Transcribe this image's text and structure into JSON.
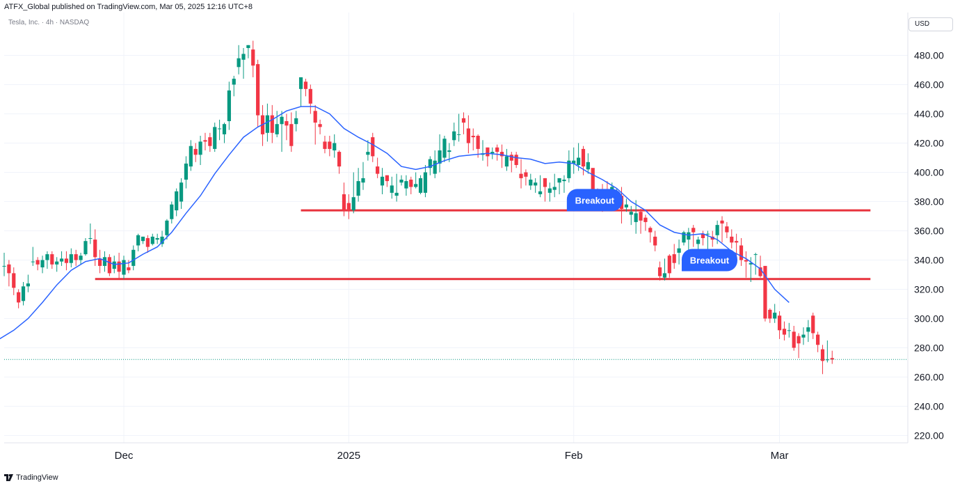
{
  "header": {
    "publisher": "ATFX_Global published on TradingView.com, Mar 05, 2025 12:16 UTC+8",
    "symbol": "Tesla, Inc. · 4h · NASDAQ",
    "currency": "USD"
  },
  "footer": {
    "logo_text": "TradingView"
  },
  "colors": {
    "up": "#089981",
    "down": "#f23645",
    "ma": "#2962ff",
    "level": "#e8323c",
    "bubble": "#2962ff",
    "grid": "#f0f3fa",
    "last_price": "#089981"
  },
  "chart_data": {
    "type": "candlestick",
    "y_ticks": [
      "220.00",
      "240.00",
      "260.00",
      "280.00",
      "300.00",
      "320.00",
      "340.00",
      "360.00",
      "380.00",
      "400.00",
      "420.00",
      "440.00",
      "460.00",
      "480.00"
    ],
    "ylim": [
      210,
      494
    ],
    "x_ticks": [
      {
        "index": 25,
        "label": "Dec"
      },
      {
        "index": 72,
        "label": "2025"
      },
      {
        "index": 119,
        "label": "Feb"
      },
      {
        "index": 162,
        "label": "Mar"
      }
    ],
    "candles": [
      [
        336,
        336,
        345,
        329
      ],
      [
        337,
        331,
        340,
        322
      ],
      [
        331,
        321,
        335,
        316
      ],
      [
        318,
        311,
        320,
        307
      ],
      [
        312,
        322,
        325,
        309
      ],
      [
        322,
        324,
        330,
        318
      ],
      [
        339,
        339,
        349,
        336
      ],
      [
        340,
        337,
        342,
        333
      ],
      [
        335,
        340,
        343,
        331
      ],
      [
        340,
        344,
        346,
        334
      ],
      [
        344,
        337,
        346,
        334
      ],
      [
        337,
        339,
        342,
        332
      ],
      [
        339,
        341,
        346,
        336
      ],
      [
        341,
        338,
        346,
        333
      ],
      [
        338,
        344,
        348,
        335
      ],
      [
        344,
        340,
        347,
        336
      ],
      [
        340,
        343,
        345,
        337
      ],
      [
        344,
        353,
        355,
        343
      ],
      [
        355,
        355,
        365,
        351
      ],
      [
        354,
        342,
        361,
        336
      ],
      [
        341,
        336,
        347,
        331
      ],
      [
        336,
        342,
        346,
        332
      ],
      [
        342,
        331,
        344,
        329
      ],
      [
        334,
        339,
        343,
        331
      ],
      [
        339,
        332,
        345,
        327
      ],
      [
        330,
        340,
        343,
        327
      ],
      [
        335,
        333,
        340,
        331
      ],
      [
        336,
        347,
        350,
        333
      ],
      [
        350,
        357,
        358,
        346
      ],
      [
        353,
        356,
        356,
        351
      ],
      [
        355,
        349,
        357,
        345
      ],
      [
        351,
        356,
        358,
        350
      ],
      [
        354,
        355,
        358,
        351
      ],
      [
        351,
        356,
        360,
        349
      ],
      [
        357,
        367,
        368,
        354
      ],
      [
        368,
        378,
        380,
        365
      ],
      [
        374,
        387,
        389,
        370
      ],
      [
        380,
        393,
        396,
        375
      ],
      [
        395,
        406,
        411,
        389
      ],
      [
        404,
        418,
        422,
        401
      ],
      [
        416,
        412,
        420,
        407
      ],
      [
        412,
        421,
        425,
        405
      ],
      [
        422,
        421,
        427,
        415
      ],
      [
        424,
        418,
        427,
        414
      ],
      [
        416,
        431,
        434,
        414
      ],
      [
        430,
        430,
        436,
        422
      ],
      [
        426,
        433,
        434,
        420
      ],
      [
        435,
        456,
        462,
        429
      ],
      [
        460,
        464,
        466,
        452
      ],
      [
        472,
        478,
        487,
        467
      ],
      [
        477,
        481,
        485,
        464
      ],
      [
        485,
        487,
        487,
        478
      ],
      [
        484,
        473,
        490,
        465
      ],
      [
        474,
        439,
        477,
        431
      ],
      [
        439,
        426,
        446,
        418
      ],
      [
        427,
        439,
        447,
        421
      ],
      [
        439,
        427,
        446,
        420
      ],
      [
        426,
        433,
        442,
        424
      ],
      [
        433,
        438,
        442,
        414
      ],
      [
        435,
        432,
        440,
        422
      ],
      [
        433,
        418,
        441,
        414
      ],
      [
        433,
        437,
        442,
        428
      ],
      [
        457,
        465,
        465,
        445
      ],
      [
        462,
        457,
        464,
        452
      ],
      [
        457,
        447,
        460,
        440
      ],
      [
        442,
        434,
        446,
        419
      ],
      [
        433,
        431,
        436,
        426
      ],
      [
        421,
        416,
        425,
        413
      ],
      [
        421,
        416,
        425,
        411
      ],
      [
        415,
        420,
        426,
        410
      ],
      [
        414,
        404,
        415,
        399
      ],
      [
        385,
        374,
        393,
        370
      ],
      [
        379,
        374,
        385,
        368
      ],
      [
        374,
        383,
        400,
        372
      ],
      [
        384,
        394,
        403,
        380
      ],
      [
        393,
        396,
        407,
        388
      ],
      [
        412,
        414,
        422,
        408
      ],
      [
        424,
        411,
        427,
        407
      ],
      [
        404,
        399,
        410,
        396
      ],
      [
        391,
        397,
        403,
        385
      ],
      [
        398,
        394,
        398,
        390
      ],
      [
        386,
        391,
        397,
        382
      ],
      [
        384,
        386,
        399,
        380
      ],
      [
        393,
        395,
        398,
        391
      ],
      [
        389,
        394,
        398,
        384
      ],
      [
        395,
        390,
        397,
        385
      ],
      [
        390,
        392,
        400,
        389
      ],
      [
        386,
        396,
        398,
        385
      ],
      [
        386,
        400,
        405,
        383
      ],
      [
        403,
        409,
        411,
        398
      ],
      [
        399,
        408,
        415,
        396
      ],
      [
        406,
        415,
        426,
        400
      ],
      [
        410,
        423,
        425,
        407
      ],
      [
        414,
        415,
        420,
        407
      ],
      [
        422,
        428,
        434,
        418
      ],
      [
        426,
        426,
        440,
        421
      ],
      [
        437,
        434,
        441,
        426
      ],
      [
        430,
        420,
        439,
        413
      ],
      [
        425,
        424,
        430,
        415
      ],
      [
        425,
        416,
        426,
        410
      ],
      [
        412,
        413,
        422,
        408
      ],
      [
        417,
        411,
        417,
        404
      ],
      [
        413,
        414,
        417,
        409
      ],
      [
        417,
        414,
        419,
        408
      ],
      [
        414,
        411,
        419,
        403
      ],
      [
        404,
        411,
        416,
        401
      ],
      [
        412,
        408,
        414,
        400
      ],
      [
        412,
        405,
        414,
        403
      ],
      [
        399,
        396,
        409,
        389
      ],
      [
        400,
        397,
        402,
        391
      ],
      [
        391,
        395,
        399,
        388
      ],
      [
        391,
        393,
        396,
        386
      ],
      [
        385,
        387,
        398,
        383
      ],
      [
        396,
        390,
        396,
        380
      ],
      [
        386,
        389,
        393,
        380
      ],
      [
        388,
        390,
        399,
        383
      ],
      [
        393,
        396,
        396,
        385
      ],
      [
        394,
        395,
        398,
        386
      ],
      [
        396,
        408,
        415,
        393
      ],
      [
        406,
        408,
        417,
        399
      ],
      [
        405,
        410,
        420,
        401
      ],
      [
        416,
        404,
        418,
        398
      ],
      [
        402,
        407,
        413,
        399
      ],
      [
        403,
        381,
        386,
        374
      ],
      [
        388,
        385,
        389,
        374
      ],
      [
        385,
        378,
        392,
        373
      ],
      [
        380,
        378,
        394,
        375
      ],
      [
        383,
        390,
        393,
        382
      ],
      [
        386,
        387,
        389,
        380
      ],
      [
        384,
        375,
        390,
        365
      ],
      [
        376,
        378,
        382,
        373
      ],
      [
        371,
        373,
        377,
        364
      ],
      [
        366,
        372,
        381,
        358
      ],
      [
        373,
        367,
        375,
        358
      ],
      [
        369,
        366,
        371,
        360
      ],
      [
        362,
        359,
        363,
        352
      ],
      [
        356,
        350,
        360,
        346
      ],
      [
        335,
        329,
        339,
        326
      ],
      [
        328,
        331,
        341,
        326
      ],
      [
        343,
        331,
        344,
        328
      ],
      [
        344,
        338,
        351,
        334
      ],
      [
        345,
        348,
        354,
        337
      ],
      [
        352,
        359,
        360,
        350
      ],
      [
        354,
        359,
        362,
        344
      ],
      [
        362,
        359,
        364,
        349
      ],
      [
        351,
        354,
        356,
        346
      ],
      [
        358,
        355,
        360,
        350
      ],
      [
        358,
        358,
        360,
        346
      ],
      [
        356,
        354,
        360,
        349
      ],
      [
        357,
        364,
        367,
        351
      ],
      [
        367,
        365,
        370,
        352
      ],
      [
        363,
        359,
        366,
        355
      ],
      [
        356,
        352,
        361,
        348
      ],
      [
        353,
        352,
        358,
        342
      ],
      [
        350,
        340,
        355,
        336
      ],
      [
        340,
        339,
        346,
        328
      ],
      [
        337,
        338,
        342,
        325
      ],
      [
        344,
        344,
        345,
        330
      ],
      [
        335,
        329,
        343,
        328
      ],
      [
        336,
        300,
        326,
        298
      ],
      [
        306,
        300,
        307,
        297
      ],
      [
        300,
        304,
        310,
        297
      ],
      [
        302,
        292,
        305,
        286
      ],
      [
        293,
        289,
        298,
        285
      ],
      [
        292,
        292,
        297,
        287
      ],
      [
        291,
        280,
        295,
        278
      ],
      [
        288,
        283,
        290,
        273
      ],
      [
        287,
        289,
        294,
        282
      ],
      [
        291,
        294,
        299,
        284
      ],
      [
        302,
        290,
        304,
        286
      ],
      [
        289,
        282,
        291,
        277
      ],
      [
        279,
        271,
        282,
        262
      ],
      [
        272,
        272,
        285,
        270
      ],
      [
        273,
        272,
        278,
        269
      ]
    ],
    "ma": [
      [
        -1,
        286
      ],
      [
        2,
        292
      ],
      [
        5,
        300
      ],
      [
        8,
        311
      ],
      [
        11,
        323
      ],
      [
        14,
        333
      ],
      [
        17,
        339
      ],
      [
        20,
        341
      ],
      [
        23,
        337
      ],
      [
        26,
        338
      ],
      [
        29,
        344
      ],
      [
        32,
        349
      ],
      [
        35,
        359
      ],
      [
        38,
        372
      ],
      [
        41,
        384
      ],
      [
        44,
        399
      ],
      [
        47,
        412
      ],
      [
        50,
        424
      ],
      [
        53,
        431
      ],
      [
        56,
        436
      ],
      [
        59,
        442
      ],
      [
        62,
        445
      ],
      [
        65,
        445
      ],
      [
        68,
        440
      ],
      [
        71,
        430
      ],
      [
        74,
        424
      ],
      [
        77,
        419
      ],
      [
        80,
        413
      ],
      [
        83,
        404
      ],
      [
        86,
        402
      ],
      [
        89,
        404
      ],
      [
        92,
        408
      ],
      [
        95,
        411
      ],
      [
        98,
        412
      ],
      [
        101,
        413
      ],
      [
        104,
        412
      ],
      [
        107,
        410
      ],
      [
        110,
        409
      ],
      [
        113,
        406
      ],
      [
        116,
        407
      ],
      [
        119,
        406
      ],
      [
        122,
        400
      ],
      [
        125,
        395
      ],
      [
        128,
        389
      ],
      [
        131,
        380
      ],
      [
        134,
        374
      ],
      [
        137,
        364
      ],
      [
        140,
        359
      ],
      [
        143,
        357
      ],
      [
        146,
        358
      ],
      [
        149,
        354
      ],
      [
        152,
        346
      ],
      [
        155,
        341
      ],
      [
        158,
        334
      ],
      [
        161,
        320
      ],
      [
        164,
        311
      ]
    ],
    "levels": [
      {
        "from": 62,
        "to": 181,
        "price": 374
      },
      {
        "from": 19,
        "to": 181,
        "price": 327
      }
    ],
    "annotations": [
      {
        "text": "Breakout",
        "index": 118,
        "price": 381
      },
      {
        "text": "Breakout",
        "index": 142,
        "price": 340
      }
    ],
    "last_price": 272
  }
}
